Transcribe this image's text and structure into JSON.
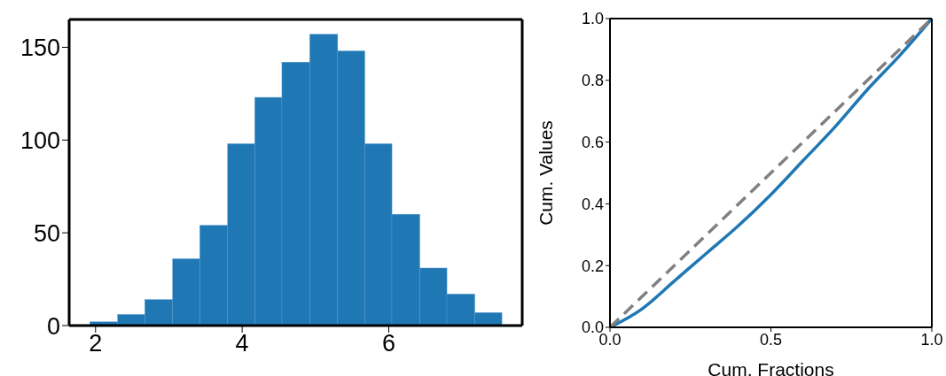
{
  "chart_data": [
    {
      "type": "histogram",
      "bins": [
        1.92,
        2.3,
        2.67,
        3.05,
        3.42,
        3.8,
        4.17,
        4.54,
        4.92,
        5.3,
        5.67,
        6.04,
        6.42,
        6.79,
        7.17,
        7.54
      ],
      "values": [
        2,
        6,
        14,
        36,
        54,
        98,
        123,
        142,
        157,
        148,
        98,
        60,
        31,
        17,
        7
      ],
      "color": "#1f77b4",
      "xlim": [
        1.64,
        7.82
      ],
      "ylim": [
        0,
        165
      ],
      "xticks": [
        2,
        4,
        6
      ],
      "yticks": [
        0,
        50,
        100,
        150
      ]
    },
    {
      "type": "line",
      "xlabel": "Cum. Fractions",
      "ylabel": "Cum. Values",
      "xlim": [
        0,
        1
      ],
      "ylim": [
        0,
        1
      ],
      "xticks": [
        {
          "value": 0,
          "label": "0.0"
        },
        {
          "value": 0.5,
          "label": "0.5"
        },
        {
          "value": 1,
          "label": "1.0"
        }
      ],
      "yticks": [
        {
          "value": 0,
          "label": "0.0"
        },
        {
          "value": 0.2,
          "label": "0.2"
        },
        {
          "value": 0.4,
          "label": "0.4"
        },
        {
          "value": 0.6,
          "label": "0.6"
        },
        {
          "value": 0.8,
          "label": "0.8"
        },
        {
          "value": 1,
          "label": "1.0"
        }
      ],
      "series": [
        {
          "color": "#1f77b4",
          "line_style": "solid",
          "x": [
            0,
            0.1,
            0.2,
            0.3,
            0.4,
            0.5,
            0.6,
            0.7,
            0.8,
            0.9,
            1
          ],
          "values": [
            0,
            0.06,
            0.15,
            0.24,
            0.33,
            0.43,
            0.54,
            0.65,
            0.77,
            0.88,
            1
          ]
        },
        {
          "color": "#808080",
          "line_style": "dashed",
          "x": [
            0,
            1
          ],
          "values": [
            0,
            1
          ]
        }
      ]
    }
  ]
}
